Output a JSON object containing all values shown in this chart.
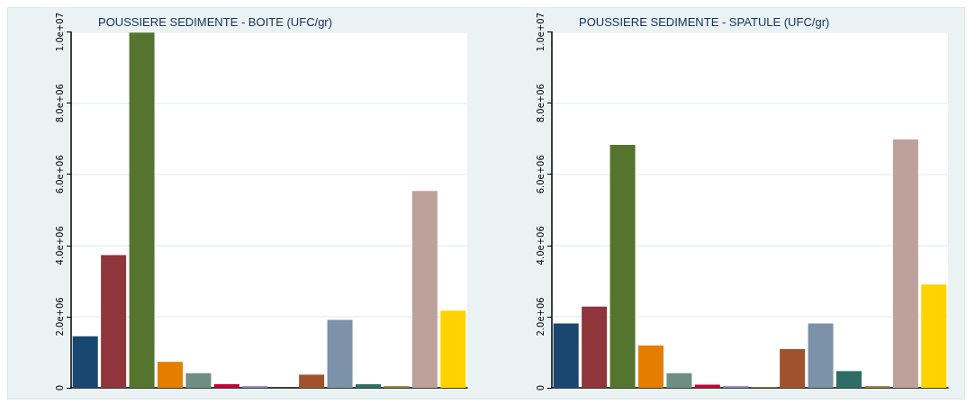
{
  "chart_data": [
    {
      "type": "bar",
      "title": "POUSSIERE SEDIMENTE - BOITE (UFC/gr)",
      "categories": [
        null,
        null,
        null,
        null,
        null,
        null,
        null,
        null,
        null,
        null,
        null,
        null,
        null,
        null
      ],
      "values": [
        1450000,
        3730000,
        9980000,
        730000,
        410000,
        100000,
        50000,
        0,
        370000,
        1910000,
        100000,
        50000,
        5530000,
        2170000
      ],
      "colors": [
        "#1a476f",
        "#90353b",
        "#55752f",
        "#e37e00",
        "#6e8e84",
        "#c10534",
        "#938dd2",
        "#cac27e",
        "#a0522d",
        "#7b92a8",
        "#2d6d66",
        "#9c8847",
        "#bfa19c",
        "#ffd200"
      ],
      "ylim": [
        0,
        10000000
      ],
      "yticks": [
        0,
        {
          "value": 2000000,
          "label": "2.0e+06"
        },
        {
          "value": 4000000,
          "label": "4.0e+06"
        },
        {
          "value": 6000000,
          "label": "6.0e+06"
        },
        {
          "value": 8000000,
          "label": "8.0e+06"
        },
        {
          "value": 10000000,
          "label": "1.0e+07"
        }
      ],
      "grid": "y"
    },
    {
      "type": "bar",
      "title": "POUSSIERE SEDIMENTE - SPATULE (UFC/gr)",
      "categories": [
        null,
        null,
        null,
        null,
        null,
        null,
        null,
        null,
        null,
        null,
        null,
        null,
        null,
        null
      ],
      "values": [
        1810000,
        2280000,
        6830000,
        1190000,
        410000,
        90000,
        50000,
        20000,
        1090000,
        1810000,
        470000,
        50000,
        6980000,
        2900000
      ],
      "colors": [
        "#1a476f",
        "#90353b",
        "#55752f",
        "#e37e00",
        "#6e8e84",
        "#c10534",
        "#938dd2",
        "#9c8847",
        "#a0522d",
        "#7b92a8",
        "#2d6d66",
        "#9c8847",
        "#bfa19c",
        "#ffd200"
      ],
      "ylim": [
        0,
        10000000
      ],
      "yticks": [
        0,
        {
          "value": 2000000,
          "label": "2.0e+06"
        },
        {
          "value": 4000000,
          "label": "4.0e+06"
        },
        {
          "value": 6000000,
          "label": "6.0e+06"
        },
        {
          "value": 8000000,
          "label": "8.0e+06"
        },
        {
          "value": 10000000,
          "label": "1.0e+07"
        }
      ],
      "grid": "y"
    }
  ]
}
